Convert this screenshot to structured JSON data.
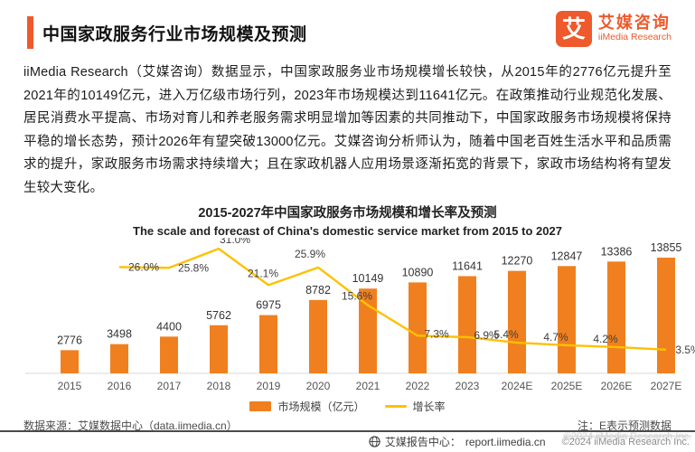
{
  "header": {
    "title": "中国家政服务行业市场规模及预测",
    "logo": {
      "glyph": "艾",
      "name_cn": "艾媒咨询",
      "name_en": "iiMedia Research"
    }
  },
  "body_paragraph": "iiMedia Research（艾媒咨询）数据显示，中国家政服务业市场规模增长较快，从2015年的2776亿元提升至2021年的10149亿元，进入万亿级市场行列，2023年市场规模达到11641亿元。在政策推动行业规范化发展、居民消费水平提高、市场对育儿和养老服务需求明显增加等因素的共同推动下，中国家政服务市场规模将保持平稳的增长态势，预计2026年有望突破13000亿元。艾媒咨询分析师认为，随着中国老百姓生活水平和品质需求的提升，家政服务市场需求持续增大；且在家政机器人应用场景逐渐拓宽的背景下，家政市场结构将有望发生较大变化。",
  "chart_data": {
    "type": "bar",
    "title": "2015-2027年中国家政服务市场规模和增长率及预测",
    "subtitle": "The scale and forecast of China's domestic service market from 2015 to 2027",
    "categories": [
      "2015",
      "2016",
      "2017",
      "2018",
      "2019",
      "2020",
      "2021",
      "2022",
      "2023",
      "2024E",
      "2025E",
      "2026E",
      "2027E"
    ],
    "series": [
      {
        "name": "市场规模（亿元）",
        "type": "bar",
        "color": "#F0801F",
        "values": [
          2776,
          3498,
          4400,
          5762,
          6975,
          8782,
          10149,
          10890,
          11641,
          12270,
          12847,
          13386,
          13855
        ]
      },
      {
        "name": "增长率",
        "type": "line",
        "color": "#FFC000",
        "values": [
          null,
          26.0,
          25.8,
          31.0,
          21.1,
          25.9,
          15.6,
          7.3,
          6.9,
          5.4,
          4.7,
          4.2,
          3.5
        ],
        "labels": [
          "",
          "26.0%",
          "25.8%",
          "31.0%",
          "21.1%",
          "25.9%",
          "15.6%",
          "7.3%",
          "6.9%",
          "5.4%",
          "4.7%",
          "4.2%",
          "3.5%"
        ]
      }
    ],
    "ylim": [
      0,
      14000
    ],
    "y2lim": [
      0,
      35
    ],
    "grid": false,
    "legend_position": "bottom"
  },
  "legend": [
    {
      "label": "市场规模（亿元）",
      "color": "#F0801F"
    },
    {
      "label": "增长率",
      "color": "#FFC000"
    }
  ],
  "footnotes": {
    "source": "数据来源：艾媒数据中心（data.iimedia.cn）",
    "note": "注：E表示预测数据"
  },
  "footer": {
    "report_center_label": "艾媒报告中心：",
    "report_center_url": "report.iimedia.cn",
    "copyright": "©2024 iiMedia Research Inc."
  },
  "colors": {
    "accent": "#EE5A2C",
    "bar": "#F0801F",
    "line": "#FFC000"
  }
}
